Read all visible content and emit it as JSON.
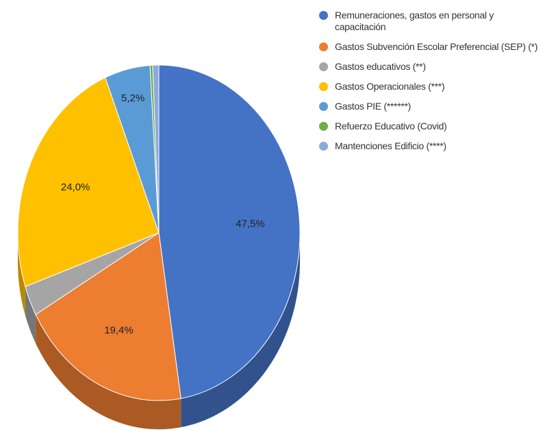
{
  "chart_data": {
    "type": "pie",
    "categories": [
      "Remuneraciones, gastos en personal y capacitación",
      "Gastos Subvención Escolar Preferencial (SEP) (*)",
      "Gastos educativos (**)",
      "Gastos Operacionales (***)",
      "Gastos PIE (******)",
      "Refuerzo Educativo (Covid)",
      "Mantenciones Edificio (****)"
    ],
    "values": [
      47.5,
      19.4,
      2.9,
      24.0,
      5.2,
      0.3,
      0.7
    ],
    "value_labels": [
      "47,5%",
      "19,4%",
      null,
      "24,0%",
      "5,2%",
      null,
      null
    ],
    "colors": [
      "#4472c4",
      "#ed7d31",
      "#a5a5a5",
      "#ffc000",
      "#5b9bd5",
      "#70ad47",
      "#8ea9db"
    ]
  }
}
